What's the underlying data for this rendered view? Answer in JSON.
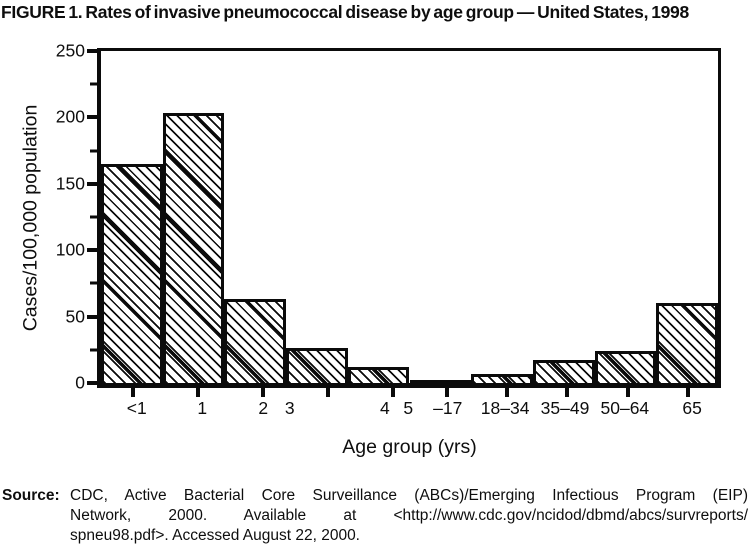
{
  "figure": {
    "title": "FIGURE 1. Rates of invasive pneumococcal disease by age group — United States, 1998"
  },
  "chart_data": {
    "type": "bar",
    "title": "FIGURE 1. Rates of invasive pneumococcal disease by age group — United States, 1998",
    "xlabel": "Age group (yrs)",
    "ylabel": "Cases/100,000 population",
    "categories": [
      "<1",
      "1",
      "2",
      "3",
      "4",
      "5–17",
      "18–34",
      "35–49",
      "50–64",
      "65"
    ],
    "values": [
      165,
      203,
      63,
      26,
      12,
      2,
      7,
      17,
      24,
      60
    ],
    "ylim": [
      0,
      250
    ],
    "yticks_major": [
      0,
      50,
      100,
      150,
      200,
      250
    ],
    "yticks_minor": [
      25,
      75,
      125,
      175,
      225
    ],
    "grid": false,
    "legend": "none",
    "bar_style": {
      "fill": "diagonal-hatch",
      "hatch_direction": "\\",
      "stroke": "#0b0b0b",
      "background": "#ffffff"
    },
    "xtick_marks_pct": [
      5.2,
      15.7,
      26.3,
      36.8,
      47.3,
      56.1,
      65.8,
      75.5,
      85.4,
      95.1
    ],
    "xtick_display": [
      {
        "text": "<1",
        "pct": 5.8
      },
      {
        "text": "1",
        "pct": 16.4
      },
      {
        "text": "2",
        "pct": 26.3
      },
      {
        "text": "3",
        "pct": 30.6
      },
      {
        "text": "4",
        "pct": 46.0
      },
      {
        "text": "5",
        "pct": 49.8
      },
      {
        "text": "–17",
        "pct": 56.2
      },
      {
        "text": "18–34",
        "pct": 65.5
      },
      {
        "text": "35–49",
        "pct": 75.2
      },
      {
        "text": "50–64",
        "pct": 84.9
      },
      {
        "text": "65",
        "pct": 95.8
      }
    ]
  },
  "source": {
    "label": "Source:",
    "lines": [
      "CDC, Active Bacterial Core Surveillance (ABCs)/Emerging Infectious Program (EIP)",
      "Network, 2000. Available at <http://www.cdc.gov/ncidod/dbmd/abcs/survreports/",
      "spneu98.pdf>. Accessed August 22, 2000."
    ]
  }
}
